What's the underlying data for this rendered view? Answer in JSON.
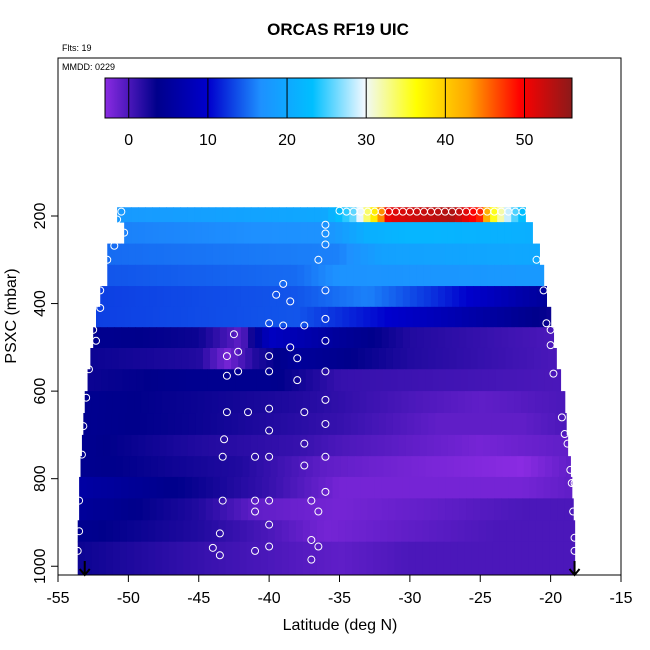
{
  "chart_data": {
    "type": "heatmap",
    "title": "ORCAS RF19 UIC",
    "annotations": [
      "Flts: 19",
      "MMDD: 0229"
    ],
    "xlabel": "Latitude (deg N)",
    "ylabel": "PSXC (mbar)",
    "xlim": [
      -55,
      -15
    ],
    "ylim": [
      1020,
      0
    ],
    "x_ticks": [
      -55,
      -50,
      -45,
      -40,
      -35,
      -30,
      -25,
      -20,
      -15
    ],
    "y_ticks": [
      200,
      400,
      600,
      800,
      1000
    ],
    "colorbar": {
      "ticks": [
        0,
        10,
        20,
        30,
        40,
        50
      ],
      "range": [
        -3,
        56
      ],
      "colors": [
        "#8a2be2",
        "#00008b",
        "#0000cd",
        "#1e90ff",
        "#00bfff",
        "#f0f8ff",
        "#ffff00",
        "#ffa500",
        "#ff0000",
        "#8b1a1a"
      ]
    },
    "bands": [
      {
        "p": 190,
        "lat_start": -50.8,
        "lat_end": -21.8,
        "anchors": [
          [
            -50.8,
            18
          ],
          [
            -36,
            20
          ],
          [
            -34,
            26
          ],
          [
            -32.5,
            38
          ],
          [
            -31.5,
            51
          ],
          [
            -27,
            54
          ],
          [
            -25,
            48
          ],
          [
            -24,
            35
          ],
          [
            -22.5,
            25
          ],
          [
            -21.8,
            22
          ]
        ]
      },
      {
        "p": 238,
        "lat_start": -50.3,
        "lat_end": -21.3,
        "anchors": [
          [
            -50.3,
            16
          ],
          [
            -36,
            17
          ],
          [
            -33,
            21
          ],
          [
            -30,
            22
          ],
          [
            -21.3,
            21
          ]
        ]
      },
      {
        "p": 288,
        "lat_start": -51.5,
        "lat_end": -20.8,
        "anchors": [
          [
            -51.5,
            15
          ],
          [
            -35,
            16
          ],
          [
            -32,
            19
          ],
          [
            -20.8,
            20
          ]
        ]
      },
      {
        "p": 335,
        "lat_start": -51.5,
        "lat_end": -20.5,
        "anchors": [
          [
            -51.5,
            14
          ],
          [
            -38,
            15
          ],
          [
            -35,
            17
          ],
          [
            -20.5,
            18
          ]
        ]
      },
      {
        "p": 385,
        "lat_start": -52.0,
        "lat_end": -20.3,
        "anchors": [
          [
            -52,
            13
          ],
          [
            -38,
            14
          ],
          [
            -33,
            16
          ],
          [
            -28,
            12
          ],
          [
            -20.3,
            5
          ]
        ]
      },
      {
        "p": 430,
        "lat_start": -52.3,
        "lat_end": -20.0,
        "anchors": [
          [
            -52.3,
            13
          ],
          [
            -38,
            14
          ],
          [
            -33,
            11
          ],
          [
            -28,
            8
          ],
          [
            -20,
            3
          ]
        ]
      },
      {
        "p": 478,
        "lat_start": -52.5,
        "lat_end": -19.8,
        "anchors": [
          [
            -52.5,
            4
          ],
          [
            -45,
            3
          ],
          [
            -42,
            -1
          ],
          [
            -40,
            9
          ],
          [
            -35,
            5
          ],
          [
            -30,
            2
          ],
          [
            -19.8,
            0
          ]
        ]
      },
      {
        "p": 525,
        "lat_start": -52.7,
        "lat_end": -19.6,
        "anchors": [
          [
            -52.7,
            3
          ],
          [
            -45,
            2
          ],
          [
            -43,
            -2
          ],
          [
            -41,
            2
          ],
          [
            -38,
            5
          ],
          [
            -30,
            2
          ],
          [
            -19.6,
            0
          ]
        ]
      },
      {
        "p": 575,
        "lat_start": -52.9,
        "lat_end": -19.3,
        "anchors": [
          [
            -52.9,
            3
          ],
          [
            -45,
            4
          ],
          [
            -40,
            4
          ],
          [
            -35,
            1
          ],
          [
            -19.3,
            0
          ]
        ]
      },
      {
        "p": 625,
        "lat_start": -53.1,
        "lat_end": -19.0,
        "anchors": [
          [
            -53.1,
            4
          ],
          [
            -45,
            3
          ],
          [
            -38,
            2
          ],
          [
            -30,
            0
          ],
          [
            -25,
            -1
          ],
          [
            -19,
            0
          ]
        ]
      },
      {
        "p": 675,
        "lat_start": -53.2,
        "lat_end": -18.9,
        "anchors": [
          [
            -53.2,
            4
          ],
          [
            -45,
            3
          ],
          [
            -35,
            1
          ],
          [
            -28,
            -1
          ],
          [
            -22,
            -1
          ],
          [
            -18.9,
            0
          ]
        ]
      },
      {
        "p": 725,
        "lat_start": -53.3,
        "lat_end": -18.8,
        "anchors": [
          [
            -53.3,
            4
          ],
          [
            -45,
            2
          ],
          [
            -38,
            1
          ],
          [
            -35,
            0
          ],
          [
            -30,
            -1
          ],
          [
            -25,
            -2
          ],
          [
            -18.8,
            -1
          ]
        ]
      },
      {
        "p": 772,
        "lat_start": -53.4,
        "lat_end": -18.6,
        "anchors": [
          [
            -53.4,
            4
          ],
          [
            -42,
            2
          ],
          [
            -36,
            -1
          ],
          [
            -30,
            -2
          ],
          [
            -22,
            -3
          ],
          [
            -18.6,
            -1
          ]
        ]
      },
      {
        "p": 820,
        "lat_start": -53.5,
        "lat_end": -18.5,
        "anchors": [
          [
            -53.5,
            6
          ],
          [
            -45,
            3
          ],
          [
            -40,
            1
          ],
          [
            -35,
            -2
          ],
          [
            -28,
            -2
          ],
          [
            -22,
            -2
          ],
          [
            -18.5,
            -1
          ]
        ]
      },
      {
        "p": 870,
        "lat_start": -53.5,
        "lat_end": -18.4,
        "anchors": [
          [
            -53.5,
            5
          ],
          [
            -45,
            2
          ],
          [
            -41,
            -1
          ],
          [
            -35,
            -2
          ],
          [
            -28,
            -1
          ],
          [
            -22,
            0
          ],
          [
            -18.4,
            0
          ]
        ]
      },
      {
        "p": 920,
        "lat_start": -53.6,
        "lat_end": -18.3,
        "anchors": [
          [
            -53.6,
            4
          ],
          [
            -45,
            2
          ],
          [
            -40,
            0
          ],
          [
            -36,
            -2
          ],
          [
            -30,
            -1
          ],
          [
            -24,
            0
          ],
          [
            -18.3,
            0
          ]
        ]
      },
      {
        "p": 968,
        "lat_start": -53.6,
        "lat_end": -18.3,
        "anchors": [
          [
            -53.6,
            3
          ],
          [
            -45,
            1
          ],
          [
            -40,
            0
          ],
          [
            -35,
            -1
          ],
          [
            -30,
            0
          ],
          [
            -18.3,
            0
          ]
        ]
      }
    ],
    "points": [
      [
        -50.5,
        190
      ],
      [
        -36,
        220
      ],
      [
        -35,
        188
      ],
      [
        -34.5,
        190
      ],
      [
        -34,
        190
      ],
      [
        -33.5,
        190
      ],
      [
        -33,
        190
      ],
      [
        -32.5,
        190
      ],
      [
        -32,
        190
      ],
      [
        -31.5,
        190
      ],
      [
        -31,
        190
      ],
      [
        -30.5,
        190
      ],
      [
        -30,
        190
      ],
      [
        -29.5,
        190
      ],
      [
        -29,
        190
      ],
      [
        -28.5,
        190
      ],
      [
        -28,
        190
      ],
      [
        -27.5,
        190
      ],
      [
        -27,
        190
      ],
      [
        -26.5,
        190
      ],
      [
        -26,
        190
      ],
      [
        -25.5,
        190
      ],
      [
        -25,
        190
      ],
      [
        -24.5,
        190
      ],
      [
        -24,
        190
      ],
      [
        -23.5,
        190
      ],
      [
        -23,
        190
      ],
      [
        -22.5,
        190
      ],
      [
        -22,
        190
      ],
      [
        -50.8,
        208
      ],
      [
        -50.3,
        238
      ],
      [
        -36,
        240
      ],
      [
        -36,
        265
      ],
      [
        -51,
        268
      ],
      [
        -51.5,
        300
      ],
      [
        -36.5,
        300
      ],
      [
        -21,
        300
      ],
      [
        -39,
        355
      ],
      [
        -39.5,
        380
      ],
      [
        -38.5,
        395
      ],
      [
        -36,
        370
      ],
      [
        -20.5,
        370
      ],
      [
        -52,
        370
      ],
      [
        -52,
        410
      ],
      [
        -36,
        435
      ],
      [
        -20.3,
        445
      ],
      [
        -39,
        450
      ],
      [
        -40,
        445
      ],
      [
        -37.5,
        450
      ],
      [
        -20,
        460
      ],
      [
        -52.5,
        460
      ],
      [
        -52.3,
        485
      ],
      [
        -36,
        485
      ],
      [
        -38.5,
        500
      ],
      [
        -42.5,
        470
      ],
      [
        -42.2,
        510
      ],
      [
        -43,
        520
      ],
      [
        -40,
        520
      ],
      [
        -38,
        525
      ],
      [
        -36,
        555
      ],
      [
        -20,
        495
      ],
      [
        -19.8,
        560
      ],
      [
        -52.8,
        550
      ],
      [
        -40,
        555
      ],
      [
        -43,
        565
      ],
      [
        -42.2,
        555
      ],
      [
        -38,
        575
      ],
      [
        -53,
        615
      ],
      [
        -19.2,
        660
      ],
      [
        -43,
        648
      ],
      [
        -41.5,
        648
      ],
      [
        -40,
        640
      ],
      [
        -37.5,
        648
      ],
      [
        -36,
        620
      ],
      [
        -36,
        675
      ],
      [
        -40,
        690
      ],
      [
        -19,
        698
      ],
      [
        -53.2,
        680
      ],
      [
        -43.2,
        710
      ],
      [
        -37.5,
        720
      ],
      [
        -53.3,
        745
      ],
      [
        -43.3,
        750
      ],
      [
        -41,
        750
      ],
      [
        -40,
        750
      ],
      [
        -37.5,
        770
      ],
      [
        -36,
        750
      ],
      [
        -18.8,
        720
      ],
      [
        -18.6,
        780
      ],
      [
        -18.5,
        810
      ],
      [
        -18.3,
        810
      ],
      [
        -36,
        830
      ],
      [
        -53.5,
        850
      ],
      [
        -43.3,
        850
      ],
      [
        -41,
        850
      ],
      [
        -40,
        850
      ],
      [
        -37,
        850
      ],
      [
        -18.4,
        875
      ],
      [
        -36.5,
        875
      ],
      [
        -41,
        875
      ],
      [
        -40,
        905
      ],
      [
        -53.5,
        920
      ],
      [
        -43.5,
        925
      ],
      [
        -37,
        940
      ],
      [
        -36.5,
        955
      ],
      [
        -40,
        955
      ],
      [
        -41,
        965
      ],
      [
        -44,
        958
      ],
      [
        -43.5,
        975
      ],
      [
        -37,
        985
      ],
      [
        -18.3,
        935
      ],
      [
        -18.3,
        965
      ],
      [
        -53.6,
        965
      ]
    ],
    "markers": [
      {
        "lat": -53.1,
        "p": 1020
      },
      {
        "lat": -18.3,
        "p": 1020
      }
    ]
  }
}
